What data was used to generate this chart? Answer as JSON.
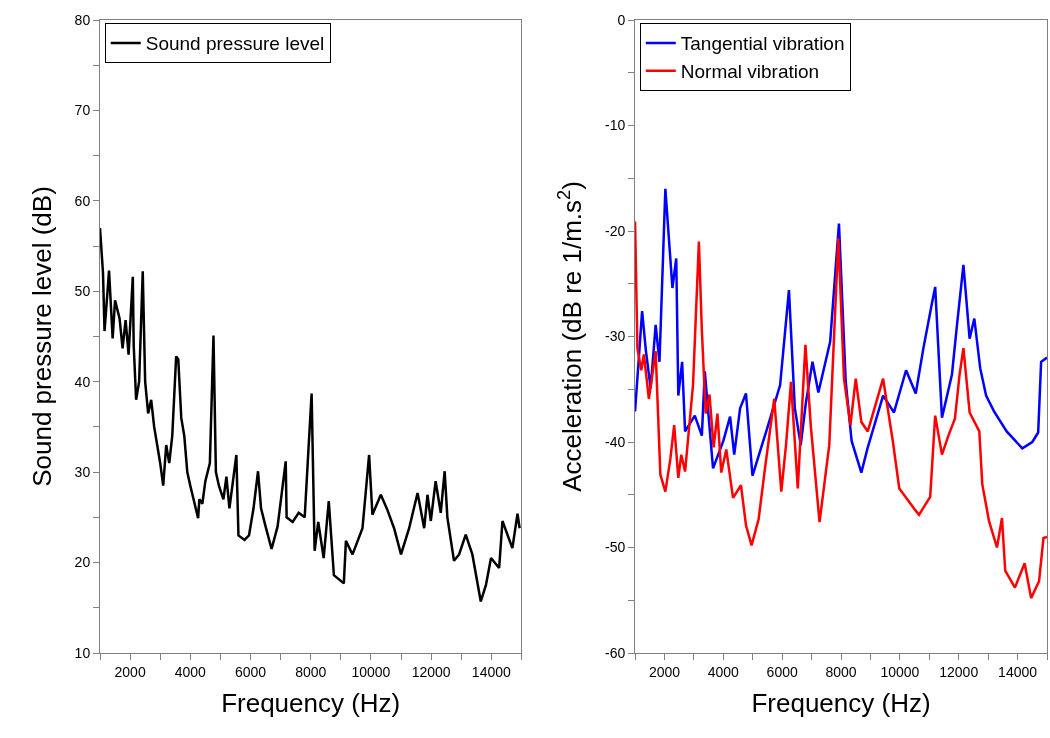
{
  "chart_data": [
    {
      "type": "line",
      "xlabel": "Frequency (Hz)",
      "ylabel": "Sound pressure level (dB)",
      "legend": "top left",
      "marker": "none",
      "line_style": "solid",
      "xlim": [
        1000,
        15000
      ],
      "ylim": [
        10,
        80
      ],
      "xticks": [
        {
          "value": 1000,
          "label": null
        },
        2000,
        {
          "value": 3000,
          "label": null
        },
        4000,
        {
          "value": 5000,
          "label": null
        },
        6000,
        {
          "value": 7000,
          "label": null
        },
        8000,
        {
          "value": 9000,
          "label": null
        },
        10000,
        {
          "value": 11000,
          "label": null
        },
        12000,
        {
          "value": 13000,
          "label": null
        },
        14000,
        {
          "value": 15000,
          "label": null
        }
      ],
      "yticks": [
        10,
        {
          "value": 15,
          "label": null
        },
        20,
        {
          "value": 25,
          "label": null
        },
        30,
        {
          "value": 35,
          "label": null
        },
        40,
        {
          "value": 45,
          "label": null
        },
        50,
        {
          "value": 55,
          "label": null
        },
        60,
        {
          "value": 65,
          "label": null
        },
        70,
        {
          "value": 75,
          "label": null
        },
        80
      ],
      "series": [
        {
          "name": "Sound pressure level",
          "color": "#000000",
          "x": [
            1000,
            1100,
            1150,
            1250,
            1300,
            1420,
            1500,
            1650,
            1750,
            1850,
            1950,
            2090,
            2120,
            2200,
            2300,
            2420,
            2500,
            2600,
            2700,
            2800,
            2900,
            3000,
            3100,
            3200,
            3300,
            3400,
            3530,
            3600,
            3700,
            3800,
            3900,
            4000,
            4260,
            4300,
            4400,
            4500,
            4650,
            4770,
            4850,
            4950,
            5100,
            5200,
            5300,
            5530,
            5600,
            5800,
            5950,
            6100,
            6250,
            6350,
            6500,
            6700,
            6900,
            7170,
            7200,
            7400,
            7600,
            7800,
            7900,
            8030,
            8130,
            8250,
            8430,
            8600,
            8770,
            9100,
            9170,
            9390,
            9720,
            9940,
            10050,
            10330,
            10550,
            10770,
            11000,
            11270,
            11550,
            11770,
            11880,
            11990,
            12150,
            12320,
            12450,
            12540,
            12760,
            12930,
            13150,
            13370,
            13650,
            13820,
            13990,
            14260,
            14370,
            14700,
            14870,
            14940
          ],
          "values": [
            57,
            52,
            45.6,
            50,
            52.3,
            44.8,
            49,
            47,
            43.7,
            46.8,
            43,
            51.6,
            44,
            38,
            40,
            52.2,
            40,
            36.5,
            38,
            35,
            33,
            31,
            28.5,
            33,
            31,
            34,
            42.8,
            42.5,
            36,
            34,
            30,
            28.5,
            24.9,
            27,
            26.5,
            29,
            31,
            45.1,
            30,
            28.5,
            27,
            29.5,
            26,
            31.9,
            23,
            22.5,
            23,
            26,
            30.1,
            26,
            24,
            21.5,
            24,
            31.2,
            25,
            24.5,
            25.5,
            25,
            31,
            38.7,
            21.3,
            24.5,
            20.5,
            26.8,
            18.6,
            17.7,
            22.4,
            20.9,
            23.8,
            31.9,
            25.3,
            27.5,
            25.8,
            23.8,
            20.9,
            23.8,
            27.7,
            23.8,
            27.5,
            24.6,
            29,
            25.5,
            30.1,
            25,
            20.2,
            20.9,
            23.1,
            20.9,
            15.7,
            17.5,
            20.5,
            19.4,
            24.6,
            21.6,
            25.4,
            23.8
          ]
        }
      ]
    },
    {
      "type": "line",
      "xlabel": "Frequency (Hz)",
      "ylabel": "Acceleration (dB re 1/m.s$^{2}$)",
      "legend": "top left",
      "marker": "none",
      "line_style": "solid",
      "xlim": [
        1000,
        15000
      ],
      "ylim": [
        -60,
        0
      ],
      "xticks": [
        {
          "value": 1000,
          "label": null
        },
        2000,
        {
          "value": 3000,
          "label": null
        },
        4000,
        {
          "value": 5000,
          "label": null
        },
        6000,
        {
          "value": 7000,
          "label": null
        },
        8000,
        {
          "value": 9000,
          "label": null
        },
        10000,
        {
          "value": 11000,
          "label": null
        },
        12000,
        {
          "value": 13000,
          "label": null
        },
        14000,
        {
          "value": 15000,
          "label": null
        }
      ],
      "yticks": [
        -60,
        {
          "value": -55,
          "label": null
        },
        -50,
        {
          "value": -45,
          "label": null
        },
        -40,
        {
          "value": -35,
          "label": null
        },
        -30,
        {
          "value": -25,
          "label": null
        },
        -20,
        {
          "value": -15,
          "label": null
        },
        -10,
        {
          "value": -5,
          "label": null
        },
        0
      ],
      "series": [
        {
          "name": "Tangential vibration",
          "color": "#0000ff",
          "x": [
            1000,
            1240,
            1370,
            1530,
            1700,
            1830,
            2030,
            2270,
            2400,
            2470,
            2600,
            2700,
            3030,
            3270,
            3370,
            3650,
            4000,
            4230,
            4370,
            4570,
            4770,
            4990,
            5490,
            5930,
            6230,
            6430,
            6630,
            6800,
            7030,
            7230,
            7630,
            7930,
            8160,
            8360,
            8690,
            8900,
            9430,
            9800,
            10210,
            10540,
            10800,
            11100,
            11200,
            11430,
            11770,
            11930,
            12160,
            12370,
            12530,
            12730,
            12930,
            13200,
            13630,
            14160,
            14500,
            14700,
            14800,
            15000
          ],
          "values": [
            -37.1,
            -27.6,
            -31.4,
            -34.9,
            -28.9,
            -32.4,
            -16.0,
            -25.4,
            -22.6,
            -35.6,
            -32.4,
            -39,
            -37.5,
            -39.4,
            -33.3,
            -42.5,
            -39.9,
            -37.6,
            -41.2,
            -36.8,
            -35.4,
            -43.2,
            -38.7,
            -34.6,
            -25.6,
            -36.8,
            -40.3,
            -36.4,
            -32.4,
            -35.3,
            -30.5,
            -19.3,
            -34.3,
            -39.9,
            -42.9,
            -40.6,
            -35.6,
            -37.2,
            -33.2,
            -35.4,
            -31.1,
            -26.7,
            -25.3,
            -37.7,
            -33.6,
            -29.2,
            -23.2,
            -30.2,
            -28.3,
            -33.0,
            -35.6,
            -37.1,
            -39.0,
            -40.6,
            -40.0,
            -39.1,
            -32.4,
            -32
          ]
        },
        {
          "name": "Normal vibration",
          "color": "#ff0000",
          "x": [
            1000,
            1080,
            1210,
            1300,
            1470,
            1700,
            1860,
            2030,
            2200,
            2330,
            2470,
            2570,
            2700,
            2970,
            3170,
            3270,
            3400,
            3530,
            3670,
            3800,
            3930,
            4100,
            4330,
            4600,
            4770,
            4960,
            5200,
            5430,
            5730,
            5970,
            6130,
            6300,
            6530,
            6790,
            6970,
            7270,
            7600,
            7910,
            8100,
            8320,
            8500,
            8690,
            8910,
            9430,
            9760,
            9980,
            10480,
            10650,
            11030,
            11200,
            11430,
            11650,
            11870,
            12030,
            12160,
            12370,
            12700,
            12800,
            13030,
            13300,
            13470,
            13580,
            13910,
            14240,
            14460,
            14730,
            14880,
            15000
          ],
          "values": [
            -19.1,
            -31.1,
            -33.2,
            -31.7,
            -35.9,
            -31.4,
            -43.1,
            -44.7,
            -41.6,
            -38.4,
            -43.4,
            -41.2,
            -42.8,
            -34.6,
            -21.0,
            -29.4,
            -37.3,
            -35.5,
            -40.5,
            -37.3,
            -42.9,
            -40.7,
            -45.3,
            -44.1,
            -47.9,
            -49.8,
            -47.3,
            -42.2,
            -35.9,
            -44.7,
            -40.3,
            -34.3,
            -44.4,
            -30.8,
            -38.4,
            -47.6,
            -40.3,
            -20.7,
            -34,
            -38.4,
            -34.0,
            -38.1,
            -39.0,
            -34.0,
            -39.9,
            -44.4,
            -46.3,
            -46.9,
            -45.2,
            -37.5,
            -41.2,
            -39.4,
            -37.8,
            -33.6,
            -31.1,
            -37.2,
            -39.0,
            -44.0,
            -47.5,
            -50.0,
            -47.2,
            -52.2,
            -53.8,
            -51.5,
            -54.8,
            -53.2,
            -49.1,
            -49
          ]
        }
      ]
    }
  ]
}
